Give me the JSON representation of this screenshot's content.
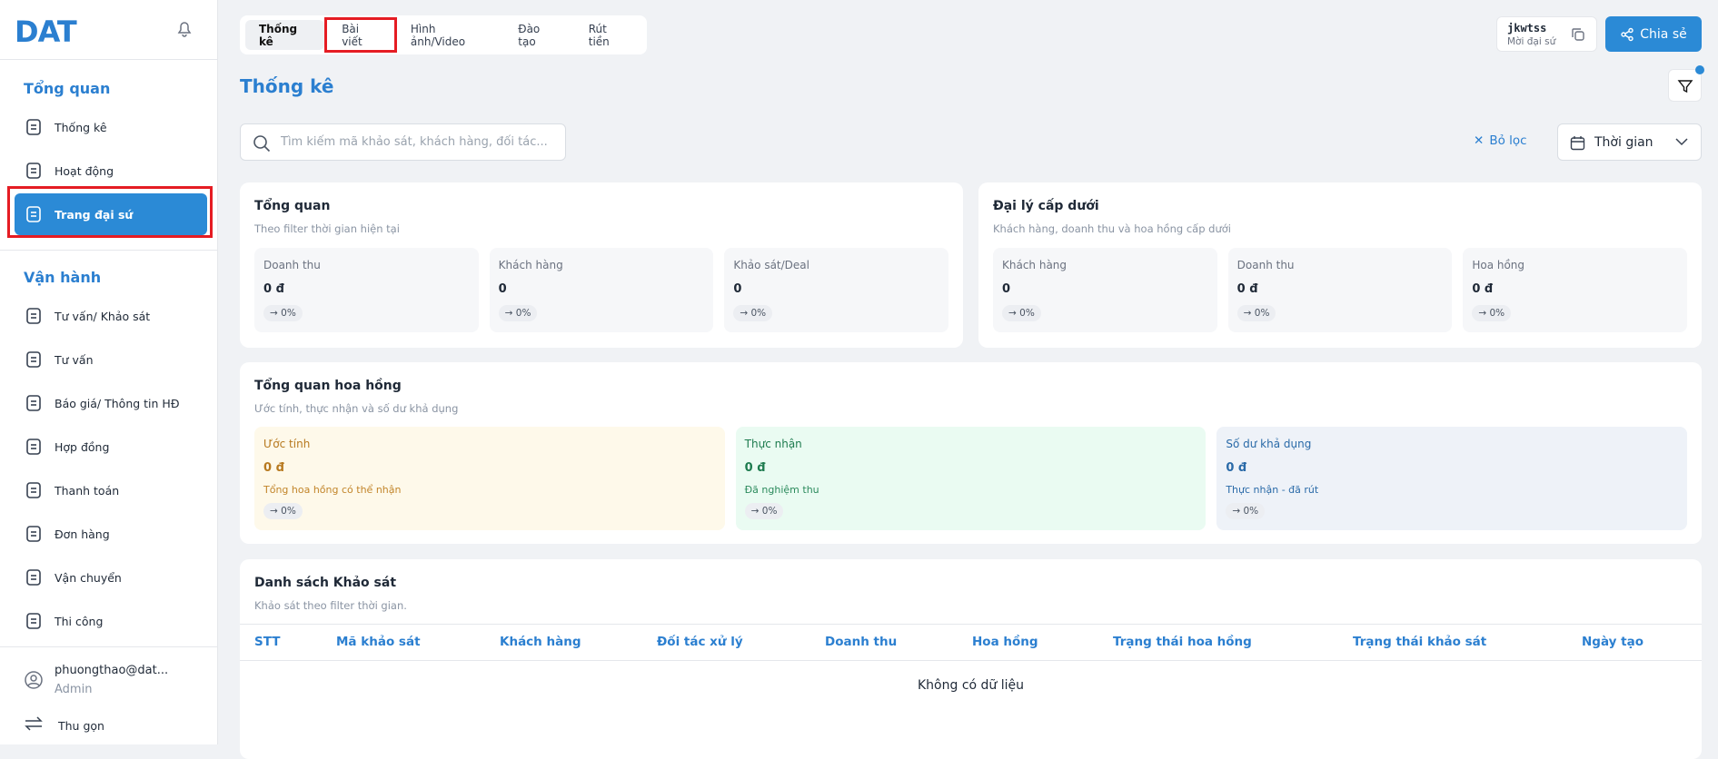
{
  "sidebar": {
    "logo": "DAT",
    "sections": [
      {
        "title": "Tổng quan",
        "items": [
          "Thống kê",
          "Hoạt động",
          "Trang đại sứ"
        ]
      },
      {
        "title": "Vận hành",
        "items": [
          "Tư vấn/ Khảo sát",
          "Tư vấn",
          "Báo giá/ Thông tin HĐ",
          "Hợp đồng",
          "Thanh toán",
          "Đơn hàng",
          "Vận chuyển",
          "Thi công"
        ]
      }
    ],
    "user": {
      "email": "phuongthao@dat...",
      "role": "Admin"
    },
    "collapse": "Thu gọn"
  },
  "tabs": [
    "Thống kê",
    "Bài viết",
    "Hình ảnh/Video",
    "Đào tạo",
    "Rút tiền"
  ],
  "referral": {
    "code": "jkwtss",
    "label": "Mời đại sứ"
  },
  "share": "Chia sẻ",
  "page_title": "Thống kê",
  "search_placeholder": "Tìm kiếm mã khảo sát, khách hàng, đối tác...",
  "filter_clear": "Bỏ lọc",
  "time_filter": "Thời gian",
  "overview": {
    "title": "Tổng quan",
    "subtitle": "Theo filter thời gian hiện tại",
    "cards": [
      {
        "label": "Doanh thu",
        "value": "0 đ",
        "change": "→ 0%"
      },
      {
        "label": "Khách hàng",
        "value": "0",
        "change": "→ 0%"
      },
      {
        "label": "Khảo sát/Deal",
        "value": "0",
        "change": "→ 0%"
      }
    ]
  },
  "sub_agents": {
    "title": "Đại lý cấp dưới",
    "subtitle": "Khách hàng, doanh thu và hoa hồng cấp dưới",
    "cards": [
      {
        "label": "Khách hàng",
        "value": "0",
        "change": "→ 0%"
      },
      {
        "label": "Doanh thu",
        "value": "0 đ",
        "change": "→ 0%"
      },
      {
        "label": "Hoa hồng",
        "value": "0 đ",
        "change": "→ 0%"
      }
    ]
  },
  "commission": {
    "title": "Tổng quan hoa hồng",
    "subtitle": "Ước tính, thực nhận và số dư khả dụng",
    "cards": [
      {
        "label": "Ước tính",
        "value": "0 đ",
        "note": "Tổng hoa hồng có thể nhận",
        "change": "→ 0%"
      },
      {
        "label": "Thực nhận",
        "value": "0 đ",
        "note": "Đã nghiệm thu",
        "change": "→ 0%"
      },
      {
        "label": "Số dư khả dụng",
        "value": "0 đ",
        "note": "Thực nhận - đã rút",
        "change": "→ 0%"
      }
    ]
  },
  "surveys": {
    "title": "Danh sách Khảo sát",
    "subtitle": "Khảo sát theo filter thời gian.",
    "columns": [
      "STT",
      "Mã khảo sát",
      "Khách hàng",
      "Đối tác xử lý",
      "Doanh thu",
      "Hoa hồng",
      "Trạng thái hoa hồng",
      "Trạng thái khảo sát",
      "Ngày tạo"
    ],
    "empty": "Không có dữ liệu"
  }
}
